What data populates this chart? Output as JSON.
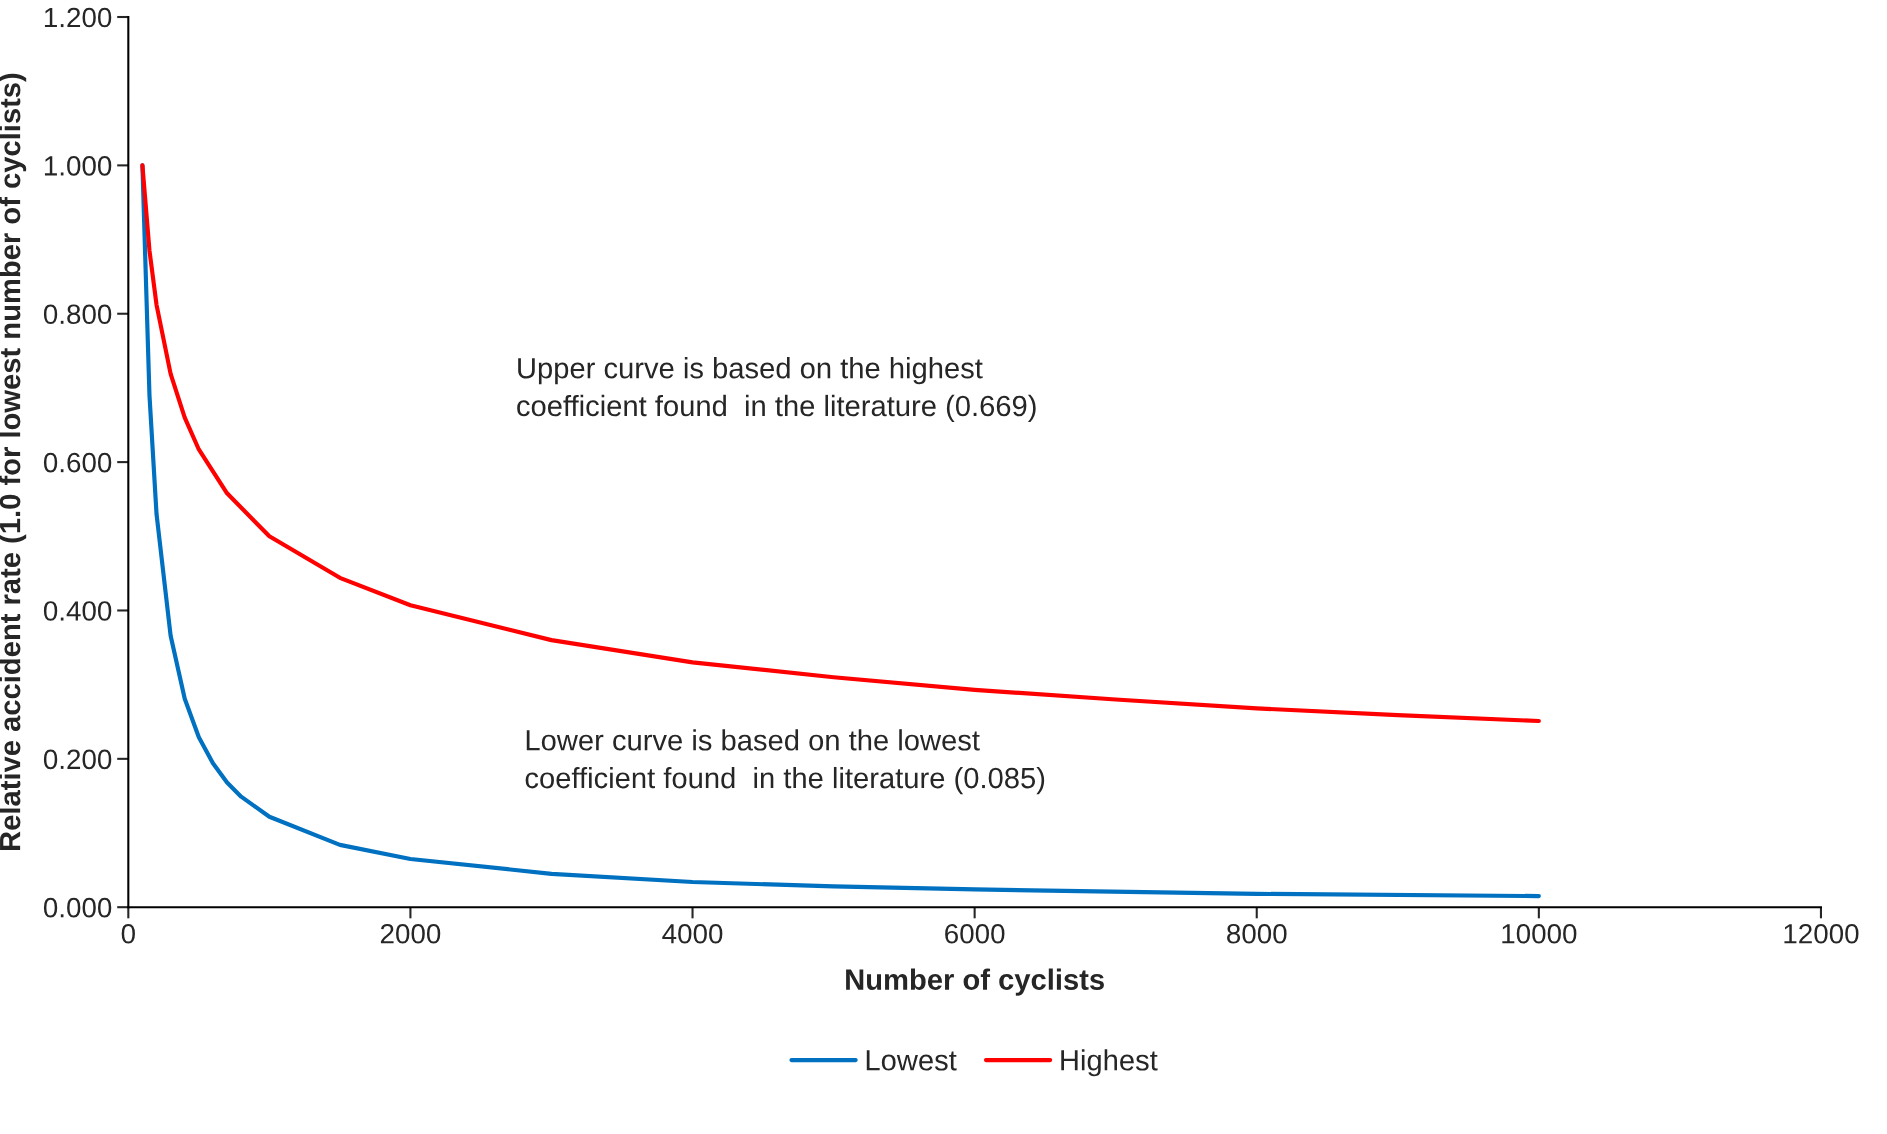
{
  "chart_data": {
    "type": "line",
    "xlabel": "Number of cyclists",
    "ylabel": "Relative accident rate (1.0 for lowest number of cyclists)",
    "series": [
      {
        "name": "Lowest",
        "color": "#0070c0",
        "x": [
          100,
          150,
          200,
          300,
          400,
          500,
          600,
          700,
          800,
          1000,
          1500,
          2000,
          3000,
          4000,
          5000,
          6000,
          8000,
          10000
        ],
        "values": [
          1.0,
          0.69,
          0.53,
          0.366,
          0.281,
          0.229,
          0.194,
          0.168,
          0.149,
          0.122,
          0.084,
          0.065,
          0.045,
          0.034,
          0.028,
          0.024,
          0.018,
          0.015
        ]
      },
      {
        "name": "Highest",
        "color": "#ff0000",
        "x": [
          100,
          150,
          200,
          300,
          400,
          500,
          700,
          1000,
          1500,
          2000,
          3000,
          4000,
          5000,
          6000,
          7000,
          8000,
          9000,
          10000
        ],
        "values": [
          1.0,
          0.885,
          0.812,
          0.719,
          0.66,
          0.617,
          0.558,
          0.5,
          0.444,
          0.407,
          0.36,
          0.33,
          0.31,
          0.293,
          0.28,
          0.268,
          0.259,
          0.251
        ]
      }
    ],
    "xlim": [
      0,
      12000
    ],
    "xticks": [
      0,
      2000,
      4000,
      6000,
      8000,
      10000,
      12000
    ],
    "ylim": [
      0,
      1.2
    ],
    "yticks": [
      {
        "value": 0,
        "label": "0.000"
      },
      {
        "value": 0.2,
        "label": "0.200"
      },
      {
        "value": 0.4,
        "label": "0.400"
      },
      {
        "value": 0.6,
        "label": "0.600"
      },
      {
        "value": 0.8,
        "label": "0.800"
      },
      {
        "value": 1.0,
        "label": "1.000"
      },
      {
        "value": 1.2,
        "label": "1.200"
      }
    ],
    "annotations": [
      "Upper curve is based on the highest\ncoefficient found  in the literature (0.669)",
      "Lower curve is based on the lowest\ncoefficient found  in the literature (0.085)"
    ],
    "grid": false,
    "legend": "bottom",
    "line_style": "solid",
    "marker": "none"
  }
}
